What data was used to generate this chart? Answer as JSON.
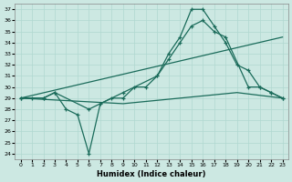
{
  "xlabel": "Humidex (Indice chaleur)",
  "xlim": [
    -0.5,
    23.5
  ],
  "ylim": [
    23.5,
    37.5
  ],
  "xticks": [
    0,
    1,
    2,
    3,
    4,
    5,
    6,
    7,
    8,
    9,
    10,
    11,
    12,
    13,
    14,
    15,
    16,
    17,
    18,
    19,
    20,
    21,
    22,
    23
  ],
  "yticks": [
    24,
    25,
    26,
    27,
    28,
    29,
    30,
    31,
    32,
    33,
    34,
    35,
    36,
    37
  ],
  "bg_color": "#cce8e2",
  "line_color": "#1a6b5a",
  "lines": [
    {
      "x": [
        0,
        1,
        2,
        3,
        4,
        5,
        6,
        7,
        8,
        9,
        10,
        11,
        12,
        13,
        14,
        15,
        16,
        17,
        18,
        19,
        20,
        21,
        22,
        23
      ],
      "y": [
        29,
        29,
        29,
        29.5,
        28,
        27.5,
        24,
        28.5,
        29,
        29,
        30,
        30,
        31,
        33,
        34.5,
        37,
        37,
        35.5,
        34,
        32,
        31.5,
        30,
        29.5,
        29
      ],
      "marker": true
    },
    {
      "x": [
        0,
        2,
        3,
        6,
        9,
        12,
        13,
        14,
        15,
        16,
        17,
        18,
        20,
        21,
        22,
        23
      ],
      "y": [
        29,
        29,
        29.5,
        28,
        29.5,
        31,
        32.5,
        34,
        35.5,
        36,
        35,
        34.5,
        30,
        30,
        29.5,
        29
      ],
      "marker": true
    },
    {
      "x": [
        0,
        23
      ],
      "y": [
        29,
        34.5
      ],
      "marker": false
    },
    {
      "x": [
        0,
        9,
        14,
        19,
        23
      ],
      "y": [
        29,
        28.5,
        29,
        29.5,
        29
      ],
      "marker": false
    }
  ],
  "marker_style": "+",
  "markersize": 3,
  "linewidth": 0.9
}
